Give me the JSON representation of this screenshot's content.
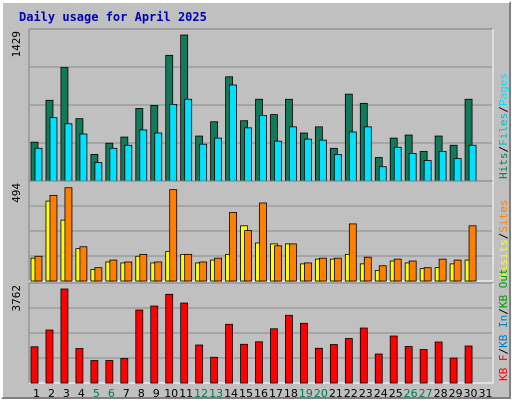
{
  "title": "Daily usage for April 2025",
  "colors": {
    "background": "#c0c0c0",
    "plot_bg": "#c0c0c0",
    "hits": "#117a5a",
    "files": "#00e0ff",
    "pages": "#00bcd4",
    "visits": "#ffff00",
    "sites": "#ff8000",
    "kbin": "#0080c0",
    "kbout": "#00a000",
    "kbf": "#ff0000",
    "title": "#0000b8",
    "weekend_day": "#007a5a",
    "weekday": "#000000"
  },
  "chart_data": [
    {
      "type": "bar",
      "ymax_label": "1429",
      "ylim": [
        0,
        1429
      ],
      "legend": [
        {
          "label": "Hits",
          "color": "#117a5a"
        },
        {
          "label": "/",
          "color": "#000000"
        },
        {
          "label": "Files",
          "color": "#00bcd4"
        },
        {
          "label": "/",
          "color": "#000000"
        },
        {
          "label": "Pages",
          "color": "#00e0ff"
        }
      ],
      "x": [
        "1",
        "2",
        "3",
        "4",
        "5",
        "6",
        "7",
        "8",
        "9",
        "10",
        "11",
        "12",
        "13",
        "14",
        "15",
        "16",
        "17",
        "18",
        "19",
        "20",
        "21",
        "22",
        "23",
        "24",
        "25",
        "26",
        "27",
        "28",
        "29",
        "30",
        "31"
      ],
      "series": [
        {
          "name": "Hits",
          "color": "#117a5a",
          "values": [
            380,
            790,
            1110,
            610,
            260,
            370,
            430,
            710,
            740,
            1230,
            1429,
            440,
            580,
            1020,
            590,
            800,
            650,
            800,
            470,
            530,
            320,
            850,
            760,
            230,
            420,
            450,
            290,
            440,
            350,
            800,
            0
          ]
        },
        {
          "name": "Files",
          "color": "#00e0ff",
          "values": [
            320,
            620,
            560,
            460,
            180,
            320,
            350,
            500,
            470,
            750,
            800,
            360,
            420,
            940,
            520,
            640,
            390,
            530,
            410,
            400,
            260,
            480,
            530,
            140,
            330,
            270,
            200,
            290,
            220,
            350,
            0
          ]
        }
      ]
    },
    {
      "type": "bar",
      "ymax_label": "494",
      "ylim": [
        0,
        494
      ],
      "legend": [
        {
          "label": "Visits",
          "color": "#ffff00"
        },
        {
          "label": "/",
          "color": "#000000"
        },
        {
          "label": "Sites",
          "color": "#ff8000"
        }
      ],
      "x": [
        "1",
        "2",
        "3",
        "4",
        "5",
        "6",
        "7",
        "8",
        "9",
        "10",
        "11",
        "12",
        "13",
        "14",
        "15",
        "16",
        "17",
        "18",
        "19",
        "20",
        "21",
        "22",
        "23",
        "24",
        "25",
        "26",
        "27",
        "28",
        "29",
        "30",
        "31"
      ],
      "series": [
        {
          "name": "Visits",
          "color": "#ffff00",
          "values": [
            120,
            420,
            320,
            170,
            60,
            100,
            95,
            130,
            95,
            155,
            140,
            95,
            110,
            140,
            290,
            200,
            195,
            195,
            90,
            115,
            115,
            140,
            90,
            55,
            105,
            95,
            65,
            70,
            90,
            110,
            0
          ]
        },
        {
          "name": "Sites",
          "color": "#ff8000",
          "values": [
            130,
            450,
            490,
            180,
            70,
            110,
            100,
            140,
            100,
            480,
            140,
            100,
            120,
            360,
            265,
            410,
            185,
            195,
            95,
            120,
            120,
            300,
            125,
            80,
            115,
            105,
            70,
            115,
            110,
            290,
            0
          ]
        }
      ]
    },
    {
      "type": "bar",
      "ymax_label": "3762",
      "ylim": [
        0,
        3762
      ],
      "legend": [
        {
          "label": "KB F",
          "color": "#ff0000"
        },
        {
          "label": "/",
          "color": "#000000"
        },
        {
          "label": "KB In",
          "color": "#0080c0"
        },
        {
          "label": "/",
          "color": "#000000"
        },
        {
          "label": "KB Out",
          "color": "#00a000"
        }
      ],
      "x": [
        "1",
        "2",
        "3",
        "4",
        "5",
        "6",
        "7",
        "8",
        "9",
        "10",
        "11",
        "12",
        "13",
        "14",
        "15",
        "16",
        "17",
        "18",
        "19",
        "20",
        "21",
        "22",
        "23",
        "24",
        "25",
        "26",
        "27",
        "28",
        "29",
        "30",
        "31"
      ],
      "series": [
        {
          "name": "KB F",
          "color": "#ff0000",
          "values": [
            1450,
            2120,
            3762,
            1380,
            900,
            900,
            980,
            2920,
            3080,
            3550,
            3200,
            1520,
            1030,
            2350,
            1550,
            1650,
            2170,
            2710,
            2390,
            1390,
            1540,
            1780,
            2200,
            1160,
            1880,
            1460,
            1340,
            1640,
            1000,
            1480,
            0
          ]
        }
      ]
    }
  ],
  "days": [
    {
      "label": "1",
      "weekend": false
    },
    {
      "label": "2",
      "weekend": false
    },
    {
      "label": "3",
      "weekend": false
    },
    {
      "label": "4",
      "weekend": false
    },
    {
      "label": "5",
      "weekend": true
    },
    {
      "label": "6",
      "weekend": true
    },
    {
      "label": "7",
      "weekend": false
    },
    {
      "label": "8",
      "weekend": false
    },
    {
      "label": "9",
      "weekend": false
    },
    {
      "label": "10",
      "weekend": false
    },
    {
      "label": "11",
      "weekend": false
    },
    {
      "label": "12",
      "weekend": true
    },
    {
      "label": "13",
      "weekend": true
    },
    {
      "label": "14",
      "weekend": false
    },
    {
      "label": "15",
      "weekend": false
    },
    {
      "label": "16",
      "weekend": false
    },
    {
      "label": "17",
      "weekend": false
    },
    {
      "label": "18",
      "weekend": false
    },
    {
      "label": "19",
      "weekend": true
    },
    {
      "label": "20",
      "weekend": true
    },
    {
      "label": "21",
      "weekend": false
    },
    {
      "label": "22",
      "weekend": false
    },
    {
      "label": "23",
      "weekend": false
    },
    {
      "label": "24",
      "weekend": false
    },
    {
      "label": "25",
      "weekend": false
    },
    {
      "label": "26",
      "weekend": true
    },
    {
      "label": "27",
      "weekend": true
    },
    {
      "label": "28",
      "weekend": false
    },
    {
      "label": "29",
      "weekend": false
    },
    {
      "label": "30",
      "weekend": false
    },
    {
      "label": "31",
      "weekend": false
    }
  ]
}
